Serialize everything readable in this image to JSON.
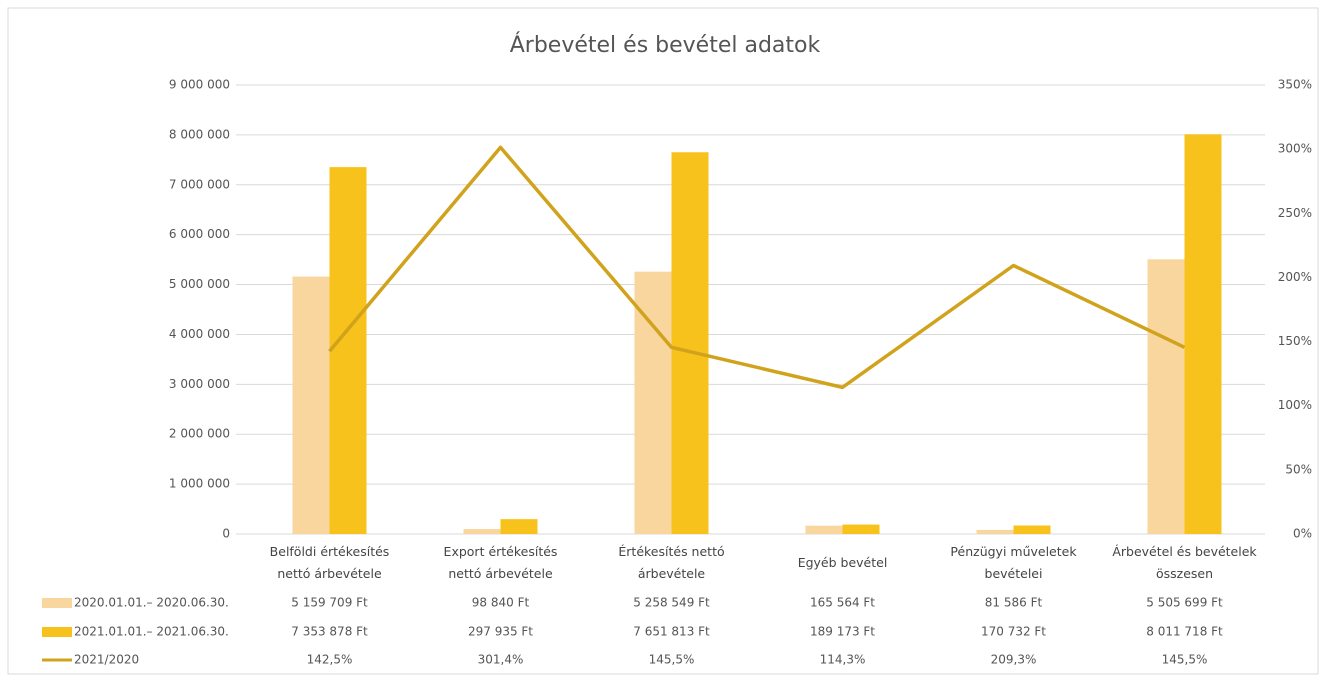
{
  "chart_data": {
    "type": "bar-line",
    "title": "Árbevétel és bevétel adatok",
    "categories": [
      "Belföldi értékesítés nettó árbevétele",
      "Export értékesítés nettó árbevétele",
      "Értékesítés nettó árbevétele",
      "Egyéb bevétel",
      "Pénzügyi műveletek bevételei",
      "Árbevétel és bevételek összesen"
    ],
    "series": [
      {
        "name": "2020.01.01.– 2020.06.30.",
        "type": "bar",
        "color": "#f8d69e",
        "values": [
          5159709,
          98840,
          5258549,
          165564,
          81586,
          5505699
        ],
        "value_labels": [
          "5 159 709 Ft",
          "98 840 Ft",
          "5 258 549 Ft",
          "165 564 Ft",
          "81 586 Ft",
          "5 505 699 Ft"
        ]
      },
      {
        "name": "2021.01.01.– 2021.06.30.",
        "type": "bar",
        "color": "#f8c21c",
        "values": [
          7353878,
          297935,
          7651813,
          189173,
          170732,
          8011718
        ],
        "value_labels": [
          "7 353 878 Ft",
          "297 935 Ft",
          "7 651 813 Ft",
          "189 173 Ft",
          "170 732 Ft",
          "8 011 718 Ft"
        ]
      },
      {
        "name": "2021/2020",
        "type": "line",
        "axis": "y2",
        "color": "#d1a21b",
        "values": [
          142.5,
          301.4,
          145.5,
          114.3,
          209.3,
          145.5
        ],
        "value_labels": [
          "142,5%",
          "301,4%",
          "145,5%",
          "114,3%",
          "209,3%",
          "145,5%"
        ]
      }
    ],
    "ylim": [
      0,
      9000000
    ],
    "yticks": [
      0,
      {
        "value": 1000000,
        "label": "1 000 000"
      },
      {
        "value": 2000000,
        "label": "2 000 000"
      },
      {
        "value": 3000000,
        "label": "3 000 000"
      },
      {
        "value": 4000000,
        "label": "4 000 000"
      },
      {
        "value": 5000000,
        "label": "5 000 000"
      },
      {
        "value": 6000000,
        "label": "6 000 000"
      },
      {
        "value": 7000000,
        "label": "7 000 000"
      },
      {
        "value": 8000000,
        "label": "8 000 000"
      },
      {
        "value": 9000000,
        "label": "9 000 000"
      }
    ],
    "y2lim": [
      0,
      350
    ],
    "y2ticks": [
      {
        "value": 0,
        "label": "0%"
      },
      {
        "value": 50,
        "label": "50%"
      },
      {
        "value": 100,
        "label": "100%"
      },
      {
        "value": 150,
        "label": "150%"
      },
      {
        "value": 200,
        "label": "200%"
      },
      {
        "value": 250,
        "label": "250%"
      },
      {
        "value": 300,
        "label": "300%"
      },
      {
        "value": 350,
        "label": "350%"
      }
    ],
    "grid": true,
    "legend": "data-table"
  }
}
